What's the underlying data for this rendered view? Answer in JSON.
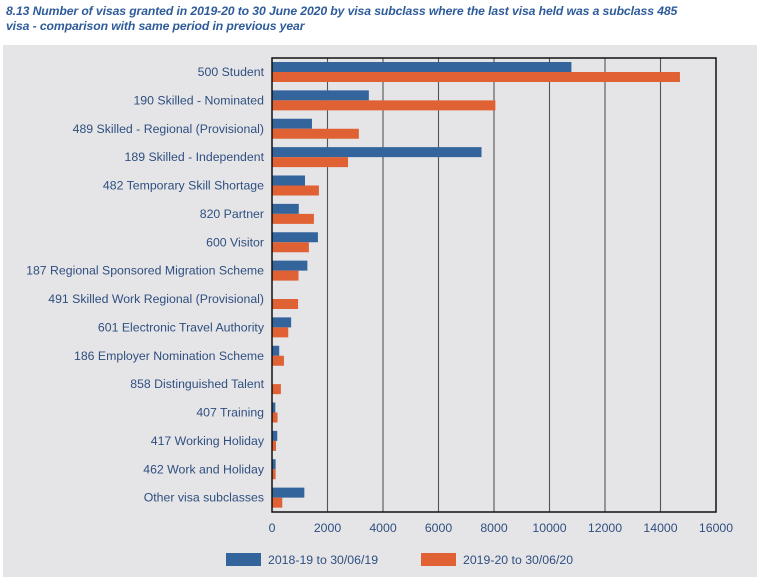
{
  "chart_data": {
    "type": "bar",
    "orientation": "horizontal",
    "title": "8.13 Number of visas granted in 2019-20 to 30 June 2020 by visa subclass where the last visa held was a subclass 485 visa - comparison with same period in previous year",
    "title_lines": [
      "8.13 Number of visas granted in 2019-20 to 30 June 2020 by visa subclass where the last visa held was a subclass 485",
      "visa - comparison with same period in previous year"
    ],
    "xlabel": "",
    "ylabel": "",
    "xlim": [
      0,
      16000
    ],
    "xticks": [
      0,
      2000,
      4000,
      6000,
      8000,
      10000,
      12000,
      14000,
      16000
    ],
    "grid": true,
    "legend_position": "bottom",
    "categories": [
      "500 Student",
      "190 Skilled - Nominated",
      "489 Skilled - Regional (Provisional)",
      "189 Skilled - Independent",
      "482 Temporary Skill Shortage",
      "820 Partner",
      "600 Visitor",
      "187 Regional Sponsored Migration Scheme",
      "491 Skilled Work Regional (Provisional)",
      "601 Electronic Travel Authority",
      "186 Employer Nomination Scheme",
      "858 Distinguished Talent",
      "407 Training",
      "417 Working Holiday",
      "462 Work and Holiday",
      "Other visa subclasses"
    ],
    "series": [
      {
        "name": "2018-19 to 30/06/19",
        "color": "#33649b",
        "values": [
          10790,
          3490,
          1440,
          7550,
          1190,
          965,
          1655,
          1275,
          0,
          690,
          260,
          0,
          120,
          190,
          130,
          1165
        ]
      },
      {
        "name": "2019-20 to 30/06/20",
        "color": "#e06133",
        "values": [
          14700,
          8050,
          3130,
          2740,
          1690,
          1510,
          1330,
          955,
          940,
          585,
          430,
          320,
          200,
          145,
          130,
          370
        ]
      }
    ]
  }
}
